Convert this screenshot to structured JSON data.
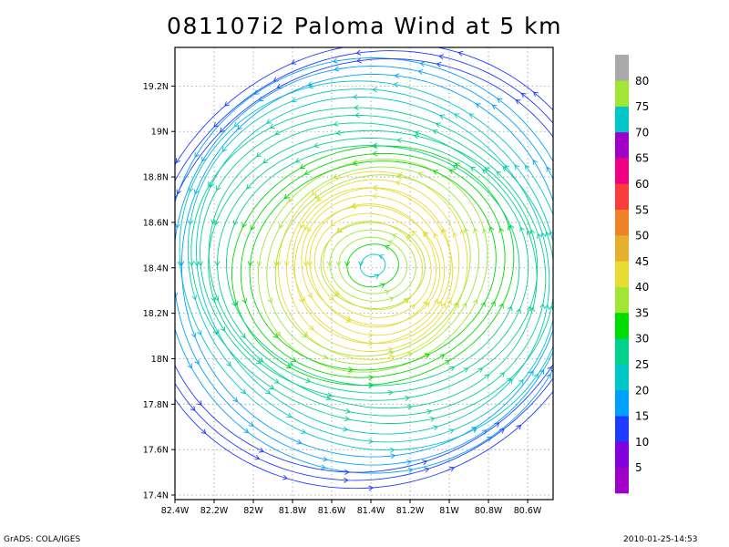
{
  "chart_data": {
    "type": "streamline",
    "title": "081107i2 Paloma Wind at 5 km",
    "xlim": [
      -82.4,
      -80.47
    ],
    "ylim": [
      17.38,
      19.37
    ],
    "x_ticks": [
      {
        "value": -82.4,
        "label": "82.4W"
      },
      {
        "value": -82.2,
        "label": "82.2W"
      },
      {
        "value": -82.0,
        "label": "82W"
      },
      {
        "value": -81.8,
        "label": "81.8W"
      },
      {
        "value": -81.6,
        "label": "81.6W"
      },
      {
        "value": -81.4,
        "label": "81.4W"
      },
      {
        "value": -81.2,
        "label": "81.2W"
      },
      {
        "value": -81.0,
        "label": "81W"
      },
      {
        "value": -80.8,
        "label": "80.8W"
      },
      {
        "value": -80.6,
        "label": "80.6W"
      }
    ],
    "y_ticks": [
      {
        "value": 17.4,
        "label": "17.4N"
      },
      {
        "value": 17.6,
        "label": "17.6N"
      },
      {
        "value": 17.8,
        "label": "17.8N"
      },
      {
        "value": 18.0,
        "label": "18N"
      },
      {
        "value": 18.2,
        "label": "18.2N"
      },
      {
        "value": 18.4,
        "label": "18.4N"
      },
      {
        "value": 18.6,
        "label": "18.6N"
      },
      {
        "value": 18.8,
        "label": "18.8N"
      },
      {
        "value": 19.0,
        "label": "19N"
      },
      {
        "value": 19.2,
        "label": "19.2N"
      }
    ],
    "grid": true,
    "vortex": {
      "center_lon": -81.39,
      "center_lat": 18.41,
      "rotation": "counterclockwise",
      "ring_speeds": [
        {
          "r_deg": 0.06,
          "speed": 22
        },
        {
          "r_deg": 0.12,
          "speed": 30
        },
        {
          "r_deg": 0.2,
          "speed": 36
        },
        {
          "r_deg": 0.28,
          "speed": 40
        },
        {
          "r_deg": 0.36,
          "speed": 42
        },
        {
          "r_deg": 0.44,
          "speed": 40
        },
        {
          "r_deg": 0.52,
          "speed": 36
        },
        {
          "r_deg": 0.62,
          "speed": 32
        },
        {
          "r_deg": 0.72,
          "speed": 28
        },
        {
          "r_deg": 0.82,
          "speed": 25
        },
        {
          "r_deg": 0.92,
          "speed": 22
        },
        {
          "r_deg": 1.02,
          "speed": 18
        },
        {
          "r_deg": 1.12,
          "speed": 14
        }
      ]
    },
    "colorbar": {
      "levels": [
        {
          "label": "",
          "color": "#a000c8"
        },
        {
          "label": "5",
          "color": "#8200dc"
        },
        {
          "label": "10",
          "color": "#1e3cff"
        },
        {
          "label": "15",
          "color": "#00a0ff"
        },
        {
          "label": "20",
          "color": "#00c8c8"
        },
        {
          "label": "25",
          "color": "#00d28c"
        },
        {
          "label": "30",
          "color": "#00dc00"
        },
        {
          "label": "35",
          "color": "#a0e632"
        },
        {
          "label": "40",
          "color": "#e6dc32"
        },
        {
          "label": "45",
          "color": "#e6af2d"
        },
        {
          "label": "50",
          "color": "#f08228"
        },
        {
          "label": "55",
          "color": "#fa3c3c"
        },
        {
          "label": "60",
          "color": "#f00082"
        },
        {
          "label": "65",
          "color": "#a000c8"
        },
        {
          "label": "70",
          "color": "#00c8c8"
        },
        {
          "label": "75",
          "color": "#a0e632"
        },
        {
          "label": "80",
          "color": "#aaaaaa"
        }
      ]
    }
  },
  "footer": {
    "left": "GrADS: COLA/IGES",
    "right": "2010-01-25-14:53"
  }
}
